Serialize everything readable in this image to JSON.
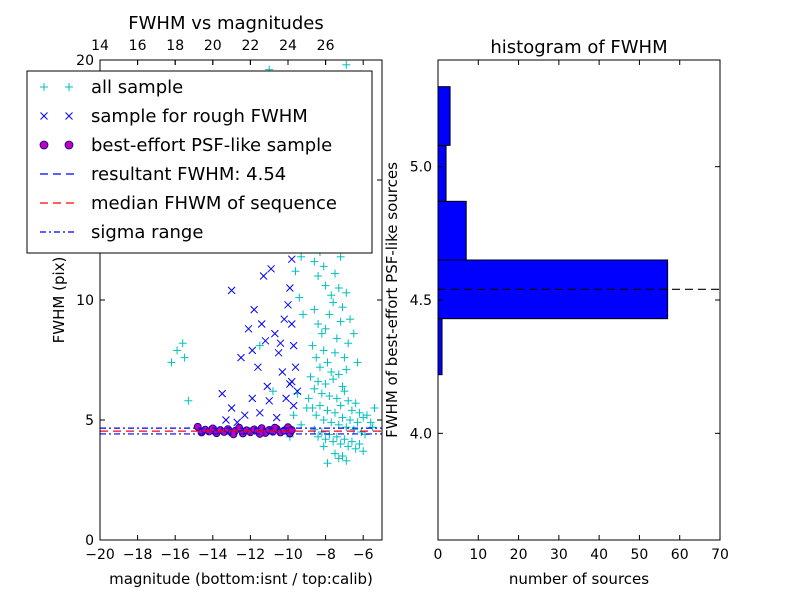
{
  "colors": {
    "all_sample": "#00bfbf",
    "rough_sample": "#0000ff",
    "psf_fill": "#bf00bf",
    "psf_edge": "#000080",
    "resultant_line": "#0000ff",
    "median_line": "#ff0000",
    "sigma_line": "#0000ff",
    "hist_bar": "#0000ff"
  },
  "chart_data": [
    {
      "type": "scatter",
      "title": "FWHM vs magnitudes",
      "xlabel": "magnitude (bottom:isnt / top:calib)",
      "ylabel": "FWHM (pix)",
      "xlim": [
        -20,
        -5
      ],
      "ylim": [
        0,
        20
      ],
      "x_ticks": [
        -20,
        -18,
        -16,
        -14,
        -12,
        -10,
        -8,
        -6
      ],
      "x_tick_labels": [
        "−20",
        "−18",
        "−16",
        "−14",
        "−12",
        "−10",
        "−8",
        "−6"
      ],
      "y_ticks": [
        0,
        5,
        10,
        15,
        20
      ],
      "y_tick_labels": [
        "0",
        "5",
        "10",
        "15",
        "20"
      ],
      "top_x_ticks": [
        14,
        16,
        18,
        20,
        22,
        24,
        26
      ],
      "top_x_tick_labels": [
        "14",
        "16",
        "18",
        "20",
        "22",
        "24",
        "26"
      ],
      "top_x_offset": 34,
      "legend": {
        "placement": "top-left",
        "entries": [
          {
            "label": "all sample",
            "marker": "plus",
            "color": "#00bfbf"
          },
          {
            "label": "sample for rough FWHM",
            "marker": "x",
            "color": "#0000ff"
          },
          {
            "label": "best-effort PSF-like sample",
            "marker": "circle",
            "color": "#bf00bf"
          },
          {
            "label": "resultant FWHM: 4.54",
            "marker": "dashed",
            "color": "#0000ff"
          },
          {
            "label": "median FHWM of sequence",
            "marker": "dashed",
            "color": "#ff0000"
          },
          {
            "label": "sigma range",
            "marker": "dashdot",
            "color": "#0000ff"
          }
        ]
      },
      "hlines": [
        {
          "name": "resultant FWHM",
          "y": 4.54,
          "style": "dashed",
          "color": "#0000ff"
        },
        {
          "name": "median FHWM of sequence",
          "y": 4.54,
          "style": "dashed",
          "color": "#ff0000"
        },
        {
          "name": "sigma range upper",
          "y": 4.66,
          "style": "dashdot",
          "color": "#0000ff"
        },
        {
          "name": "sigma range lower",
          "y": 4.42,
          "style": "dashdot",
          "color": "#0000ff"
        }
      ],
      "series": [
        {
          "name": "all sample",
          "marker": "plus",
          "color": "#00bfbf",
          "points": [
            [
              -15.6,
              8.2
            ],
            [
              -15.9,
              7.9
            ],
            [
              -15.5,
              7.6
            ],
            [
              -15.3,
              5.8
            ],
            [
              -16.2,
              7.4
            ],
            [
              -11.5,
              8.1
            ],
            [
              -10.8,
              6.2
            ],
            [
              -10.2,
              4.6
            ],
            [
              -9.9,
              4.3
            ],
            [
              -11.0,
              19.6
            ],
            [
              -6.9,
              19.8
            ],
            [
              -9.6,
              11.2
            ],
            [
              -9.4,
              10.1
            ],
            [
              -9.3,
              11.8
            ],
            [
              -9.2,
              9.4
            ],
            [
              -9.1,
              12.8
            ],
            [
              -9.5,
              6.1
            ],
            [
              -9.7,
              5.2
            ],
            [
              -9.3,
              4.8
            ],
            [
              -9.0,
              5.5
            ],
            [
              -8.8,
              13.5
            ],
            [
              -8.7,
              12.4
            ],
            [
              -8.6,
              11.6
            ],
            [
              -8.5,
              14.3
            ],
            [
              -8.4,
              11.0
            ],
            [
              -8.3,
              12.0
            ],
            [
              -8.2,
              13.2
            ],
            [
              -8.1,
              11.4
            ],
            [
              -8.0,
              10.6
            ],
            [
              -7.9,
              12.9
            ],
            [
              -8.6,
              9.6
            ],
            [
              -8.4,
              9.0
            ],
            [
              -8.2,
              8.6
            ],
            [
              -8.0,
              8.8
            ],
            [
              -7.8,
              9.4
            ],
            [
              -7.6,
              9.9
            ],
            [
              -7.4,
              8.4
            ],
            [
              -7.2,
              9.1
            ],
            [
              -7.0,
              7.6
            ],
            [
              -6.8,
              8.2
            ],
            [
              -8.7,
              8.1
            ],
            [
              -8.5,
              7.6
            ],
            [
              -8.3,
              7.2
            ],
            [
              -8.1,
              7.9
            ],
            [
              -7.9,
              7.4
            ],
            [
              -7.7,
              7.0
            ],
            [
              -7.5,
              7.8
            ],
            [
              -7.3,
              6.9
            ],
            [
              -7.1,
              6.4
            ],
            [
              -6.9,
              7.1
            ],
            [
              -8.8,
              6.8
            ],
            [
              -8.6,
              6.3
            ],
            [
              -8.4,
              6.6
            ],
            [
              -8.2,
              6.1
            ],
            [
              -8.0,
              6.5
            ],
            [
              -7.8,
              6.0
            ],
            [
              -7.6,
              6.7
            ],
            [
              -7.4,
              5.9
            ],
            [
              -7.2,
              5.6
            ],
            [
              -7.0,
              6.2
            ],
            [
              -6.8,
              5.8
            ],
            [
              -6.6,
              5.4
            ],
            [
              -6.4,
              5.7
            ],
            [
              -6.2,
              5.3
            ],
            [
              -6.0,
              5.1
            ],
            [
              -8.9,
              5.9
            ],
            [
              -8.7,
              5.5
            ],
            [
              -8.5,
              5.2
            ],
            [
              -8.3,
              5.6
            ],
            [
              -8.1,
              5.0
            ],
            [
              -7.9,
              5.4
            ],
            [
              -7.7,
              4.9
            ],
            [
              -7.5,
              5.3
            ],
            [
              -7.3,
              4.8
            ],
            [
              -7.1,
              5.1
            ],
            [
              -6.9,
              4.7
            ],
            [
              -6.7,
              5.0
            ],
            [
              -6.5,
              4.6
            ],
            [
              -6.3,
              4.9
            ],
            [
              -6.1,
              4.5
            ],
            [
              -8.6,
              4.6
            ],
            [
              -8.4,
              4.3
            ],
            [
              -8.2,
              4.5
            ],
            [
              -8.0,
              4.2
            ],
            [
              -7.8,
              4.4
            ],
            [
              -7.6,
              4.1
            ],
            [
              -7.4,
              4.3
            ],
            [
              -7.2,
              4.0
            ],
            [
              -7.0,
              4.2
            ],
            [
              -6.8,
              3.9
            ],
            [
              -6.6,
              4.1
            ],
            [
              -6.4,
              3.8
            ],
            [
              -6.2,
              4.0
            ],
            [
              -7.5,
              3.6
            ],
            [
              -7.3,
              3.4
            ],
            [
              -7.9,
              3.2
            ],
            [
              -7.1,
              3.5
            ],
            [
              -6.9,
              3.3
            ],
            [
              -8.1,
              3.9
            ],
            [
              -6.0,
              3.7
            ],
            [
              -5.8,
              5.2
            ],
            [
              -5.6,
              4.9
            ],
            [
              -5.4,
              5.5
            ],
            [
              -5.9,
              4.4
            ],
            [
              -5.5,
              4.7
            ],
            [
              -8.5,
              15.5
            ],
            [
              -8.3,
              16.4
            ],
            [
              -8.7,
              14.8
            ],
            [
              -8.1,
              15.2
            ],
            [
              -7.7,
              10.2
            ],
            [
              -7.5,
              11.1
            ],
            [
              -7.3,
              10.5
            ],
            [
              -7.1,
              9.7
            ],
            [
              -6.9,
              10.3
            ],
            [
              -6.7,
              9.2
            ],
            [
              -7.8,
              12.2
            ],
            [
              -7.6,
              12.8
            ],
            [
              -7.2,
              11.8
            ],
            [
              -6.5,
              8.6
            ],
            [
              -6.3,
              7.4
            ]
          ]
        },
        {
          "name": "sample for rough FWHM",
          "marker": "x",
          "color": "#0000ff",
          "points": [
            [
              -16.0,
              12.2
            ],
            [
              -13.0,
              10.4
            ],
            [
              -11.3,
              11.0
            ],
            [
              -10.2,
              9.2
            ],
            [
              -9.9,
              10.5
            ],
            [
              -11.8,
              9.6
            ],
            [
              -11.4,
              9.0
            ],
            [
              -11.2,
              8.3
            ],
            [
              -10.7,
              8.6
            ],
            [
              -10.5,
              7.8
            ],
            [
              -12.1,
              8.8
            ],
            [
              -11.9,
              7.9
            ],
            [
              -11.6,
              7.2
            ],
            [
              -11.1,
              6.4
            ],
            [
              -10.3,
              7.0
            ],
            [
              -10.0,
              9.8
            ],
            [
              -9.8,
              9.0
            ],
            [
              -9.7,
              8.1
            ],
            [
              -9.6,
              7.2
            ],
            [
              -9.8,
              6.6
            ],
            [
              -12.5,
              7.6
            ],
            [
              -13.5,
              6.1
            ],
            [
              -13.0,
              5.5
            ],
            [
              -12.7,
              4.9
            ],
            [
              -12.3,
              5.2
            ],
            [
              -11.9,
              5.9
            ],
            [
              -11.5,
              5.3
            ],
            [
              -11.0,
              5.8
            ],
            [
              -10.6,
              5.1
            ],
            [
              -10.1,
              5.9
            ],
            [
              -9.9,
              6.5
            ],
            [
              -9.7,
              5.6
            ],
            [
              -9.5,
              6.2
            ],
            [
              -14.0,
              4.6
            ],
            [
              -13.3,
              5.0
            ],
            [
              -10.9,
              11.3
            ],
            [
              -10.4,
              8.2
            ],
            [
              -9.8,
              11.7
            ]
          ]
        },
        {
          "name": "best-effort PSF-like sample",
          "marker": "circle",
          "color": "#bf00bf",
          "points": [
            [
              -14.8,
              4.72
            ],
            [
              -14.6,
              4.48
            ],
            [
              -14.4,
              4.6
            ],
            [
              -14.2,
              4.52
            ],
            [
              -14.0,
              4.65
            ],
            [
              -13.8,
              4.45
            ],
            [
              -13.6,
              4.58
            ],
            [
              -13.4,
              4.5
            ],
            [
              -13.2,
              4.62
            ],
            [
              -13.0,
              4.47
            ],
            [
              -12.8,
              4.55
            ],
            [
              -12.6,
              4.68
            ],
            [
              -12.4,
              4.44
            ],
            [
              -12.2,
              4.57
            ],
            [
              -12.0,
              4.49
            ],
            [
              -11.8,
              4.61
            ],
            [
              -11.6,
              4.53
            ],
            [
              -11.4,
              4.66
            ],
            [
              -11.2,
              4.46
            ],
            [
              -11.0,
              4.59
            ],
            [
              -10.8,
              4.51
            ],
            [
              -10.6,
              4.63
            ],
            [
              -10.4,
              4.48
            ],
            [
              -10.2,
              4.56
            ],
            [
              -10.0,
              4.7
            ],
            [
              -9.9,
              4.44
            ],
            [
              -9.8,
              4.58
            ],
            [
              -12.9,
              4.4
            ],
            [
              -11.5,
              4.42
            ],
            [
              -10.7,
              4.68
            ]
          ]
        }
      ]
    },
    {
      "type": "bar",
      "orientation": "horizontal",
      "title": "histogram of FWHM",
      "xlabel": "number of sources",
      "ylabel": "FWHM of best-effort PSF-like sources",
      "xlim": [
        0,
        70
      ],
      "ylim": [
        3.6,
        5.4
      ],
      "x_ticks": [
        0,
        10,
        20,
        30,
        40,
        50,
        60,
        70
      ],
      "x_tick_labels": [
        "0",
        "10",
        "20",
        "30",
        "40",
        "50",
        "60",
        "70"
      ],
      "y_ticks": [
        4.0,
        4.5,
        5.0
      ],
      "y_tick_labels": [
        "4.0",
        "4.5",
        "5.0"
      ],
      "bins": [
        {
          "low": 4.22,
          "high": 4.43,
          "count": 1
        },
        {
          "low": 4.43,
          "high": 4.65,
          "count": 57
        },
        {
          "low": 4.65,
          "high": 4.87,
          "count": 7
        },
        {
          "low": 4.87,
          "high": 5.08,
          "count": 2
        },
        {
          "low": 5.08,
          "high": 5.3,
          "count": 3
        }
      ],
      "hline": {
        "y": 4.54,
        "style": "dashed",
        "color": "#000000"
      }
    }
  ]
}
